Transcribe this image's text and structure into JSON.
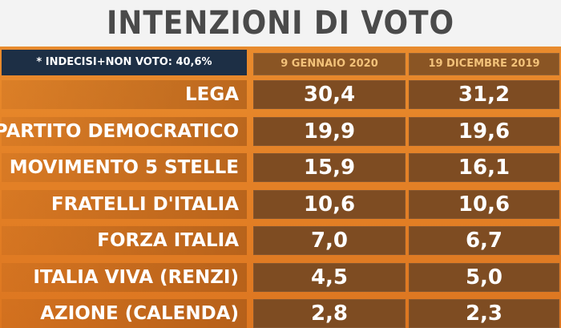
{
  "title": "INTENZIONI DI VOTO",
  "note": "* INDECISI+NON VOTO: 40,6%",
  "chart_data": {
    "type": "table",
    "columns": [
      "9 GENNAIO 2020",
      "19 DICEMBRE 2019"
    ],
    "rows": [
      {
        "party": "LEGA",
        "values": [
          "30,4",
          "31,2"
        ]
      },
      {
        "party": "PARTITO DEMOCRATICO",
        "values": [
          "19,9",
          "19,6"
        ]
      },
      {
        "party": "MOVIMENTO 5 STELLE",
        "values": [
          "15,9",
          "16,1"
        ]
      },
      {
        "party": "FRATELLI D'ITALIA",
        "values": [
          "10,6",
          "10,6"
        ]
      },
      {
        "party": "FORZA ITALIA",
        "values": [
          "7,0",
          "6,7"
        ]
      },
      {
        "party": "ITALIA VIVA (RENZI)",
        "values": [
          "4,5",
          "5,0"
        ]
      },
      {
        "party": "AZIONE (CALENDA)",
        "values": [
          "2,8",
          "2,3"
        ]
      }
    ]
  }
}
